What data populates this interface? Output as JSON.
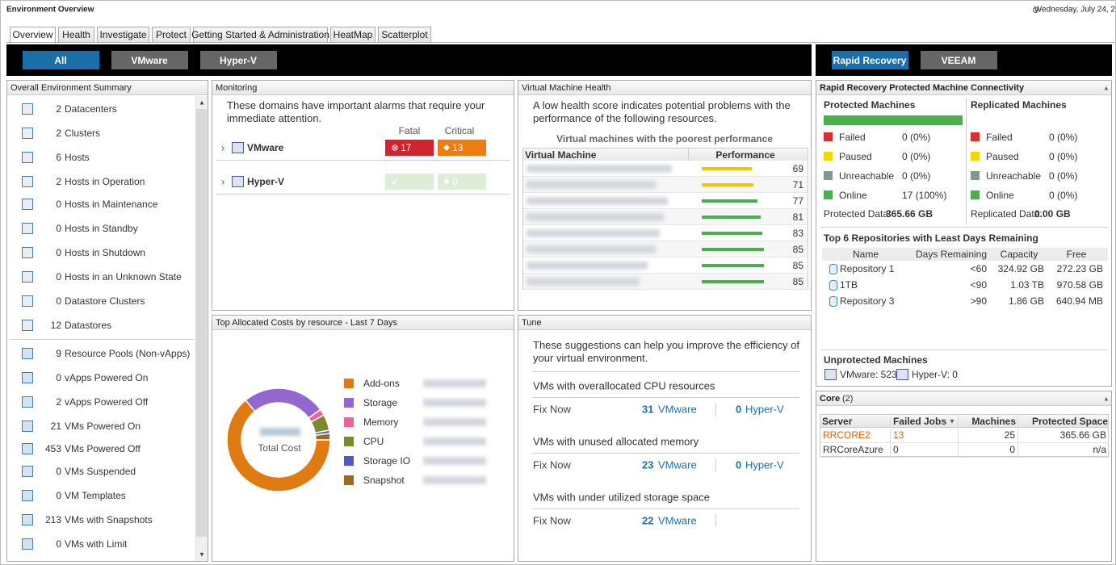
{
  "header": {
    "title": "Environment Overview",
    "date": "Wednesday, July 24, 2"
  },
  "tabs": [
    "Overview",
    "Health",
    "Investigate",
    "Protect",
    "Getting Started & Administration",
    "HeatMap",
    "Scatterplot"
  ],
  "filters": [
    "All",
    "VMware",
    "Hyper-V"
  ],
  "backup_filters": [
    "Rapid Recovery",
    "VEEAM"
  ],
  "summary": {
    "title": "Overall Environment Summary",
    "groups": [
      [
        {
          "count": 2,
          "label": "Datacenters"
        },
        {
          "count": 2,
          "label": "Clusters"
        },
        {
          "count": 6,
          "label": "Hosts"
        },
        {
          "count": 2,
          "label": "Hosts in Operation"
        },
        {
          "count": 0,
          "label": "Hosts in Maintenance"
        },
        {
          "count": 0,
          "label": "Hosts in Standby"
        },
        {
          "count": 0,
          "label": "Hosts in Shutdown"
        },
        {
          "count": 0,
          "label": "Hosts in an Unknown State"
        },
        {
          "count": 0,
          "label": "Datastore Clusters"
        },
        {
          "count": 12,
          "label": "Datastores"
        }
      ],
      [
        {
          "count": 9,
          "label": "Resource Pools (Non-vApps)"
        },
        {
          "count": 0,
          "label": "vApps Powered On"
        },
        {
          "count": 2,
          "label": "vApps Powered Off"
        },
        {
          "count": 21,
          "label": "VMs Powered On"
        },
        {
          "count": 453,
          "label": "VMs Powered Off"
        },
        {
          "count": 0,
          "label": "VMs Suspended"
        },
        {
          "count": 0,
          "label": "VM Templates"
        },
        {
          "count": 213,
          "label": "VMs with Snapshots"
        },
        {
          "count": 0,
          "label": "VMs with Limit"
        }
      ]
    ]
  },
  "monitoring": {
    "title": "Monitoring",
    "intro": "These domains have important alarms that require your immediate attention.",
    "columns": [
      "Fatal",
      "Critical"
    ],
    "rows": [
      {
        "name": "VMware",
        "fatal": 17,
        "critical": 13
      },
      {
        "name": "Hyper-V",
        "critical": 0
      }
    ]
  },
  "vm_health": {
    "title": "Virtual Machine Health",
    "intro": "A low health score indicates potential problems with the performance of the following resources.",
    "subtitle": "Virtual machines with the poorest performance",
    "columns": [
      "Virtual Machine",
      "Performance"
    ],
    "performance": [
      69,
      71,
      77,
      81,
      83,
      85,
      85,
      85
    ],
    "colors": [
      "#f2c500",
      "#f2c500",
      "#4cae4c",
      "#4cae4c",
      "#4cae4c",
      "#4cae4c",
      "#4cae4c",
      "#4cae4c"
    ]
  },
  "costs": {
    "title": "Top Allocated Costs by resource - Last 7 Days",
    "total_label": "Total Cost",
    "items": [
      {
        "name": "Add-ons",
        "color": "#e07b12",
        "value": 64
      },
      {
        "name": "Storage",
        "color": "#9467cf",
        "value": 26
      },
      {
        "name": "Memory",
        "color": "#f0609a",
        "value": 2
      },
      {
        "name": "CPU",
        "color": "#7b8a2e",
        "value": 5
      },
      {
        "name": "Storage IO",
        "color": "#5656c8",
        "value": 1
      },
      {
        "name": "Snapshot",
        "color": "#9c6a1c",
        "value": 2
      }
    ]
  },
  "tune": {
    "title": "Tune",
    "intro": "These suggestions can help you improve the efficiency of your virtual environment.",
    "action": "Fix Now",
    "platforms": [
      "VMware",
      "Hyper-V"
    ],
    "items": [
      {
        "label": "VMs with overallocated CPU resources",
        "vmware": 31,
        "hyperv": 0
      },
      {
        "label": "VMs with unused allocated memory",
        "vmware": 23,
        "hyperv": 0
      },
      {
        "label": "VMs with under utilized storage space",
        "vmware": 22
      }
    ]
  },
  "recovery": {
    "title": "Rapid Recovery Protected Machine Connectivity",
    "groups": [
      {
        "title": "Protected Machines",
        "states": [
          {
            "label": "Failed",
            "value": "0 (0%)",
            "color": "#d9302c"
          },
          {
            "label": "Paused",
            "value": "0 (0%)",
            "color": "#f2d600"
          },
          {
            "label": "Unreachable",
            "value": "0 (0%)",
            "color": "#7f9a8e"
          },
          {
            "label": "Online",
            "value": "17 (100%)",
            "color": "#4cae4c"
          }
        ],
        "data_label": "Protected Data:",
        "data_value": "365.66 GB"
      },
      {
        "title": "Replicated Machines",
        "states": [
          {
            "label": "Failed",
            "value": "0 (0%)",
            "color": "#d9302c"
          },
          {
            "label": "Paused",
            "value": "0 (0%)",
            "color": "#f2d600"
          },
          {
            "label": "Unreachable",
            "value": "0 (0%)",
            "color": "#7f9a8e"
          },
          {
            "label": "Online",
            "value": "0 (0%)",
            "color": "#4cae4c"
          }
        ],
        "data_label": "Replicated Data:",
        "data_value": "0.00 GB"
      }
    ],
    "repositories": {
      "title": "Top 6 Repositories with Least Days Remaining",
      "columns": [
        "Name",
        "Days Remaining",
        "Capacity",
        "Free"
      ],
      "rows": [
        [
          "Repository 1",
          "<60",
          "324.92 GB",
          "272.23 GB"
        ],
        [
          "1TB",
          "<90",
          "1.03 TB",
          "970.58 GB"
        ],
        [
          "Repository 3",
          ">90",
          "1.86 GB",
          "640.94 MB"
        ]
      ]
    },
    "unprotected": {
      "title": "Unprotected Machines",
      "items": [
        "VMware: 523",
        "Hyper-V: 0"
      ]
    }
  },
  "core": {
    "title": "Core",
    "count": "(2)",
    "columns": [
      "Server",
      "Failed Jobs",
      "Machines",
      "Protected Space"
    ],
    "rows": [
      [
        "RRCORE2",
        13,
        25,
        "365.66 GB"
      ],
      [
        "RRCoreAzure",
        0,
        0,
        "n/a"
      ]
    ]
  }
}
